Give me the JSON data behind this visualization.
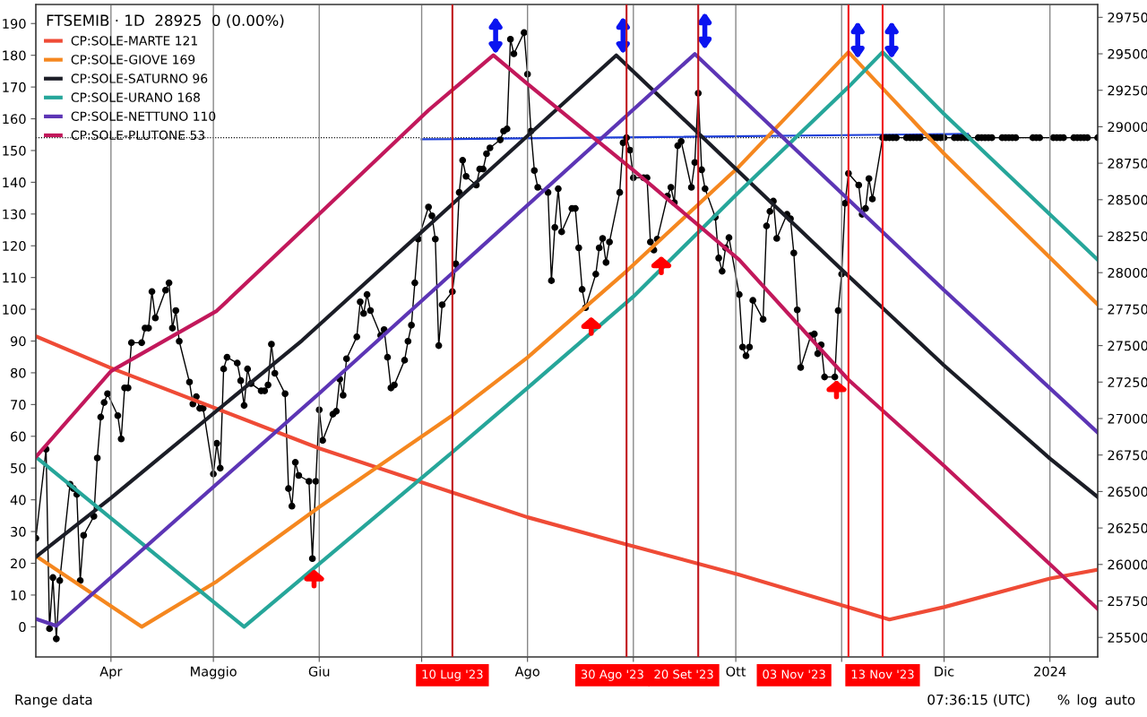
{
  "chart_data": {
    "type": "line",
    "legend_title": "FTSEMIB · 1D  28925  0 (0.00%)",
    "annotations": [
      "Range data",
      "07:36:15 (UTC)",
      "%",
      "log",
      "auto"
    ],
    "xlim": [
      "2023-03-10",
      "2024-01-15"
    ],
    "xticks": [
      {
        "value": "2023-04-01",
        "label": "Apr"
      },
      {
        "value": "2023-05-01",
        "label": "Maggio"
      },
      {
        "value": "2023-06-01",
        "label": "Giu"
      },
      {
        "value": "2023-07-01",
        "label": null
      },
      {
        "value": "2023-08-01",
        "label": "Ago"
      },
      {
        "value": "2023-09-01",
        "label": null
      },
      {
        "value": "2023-10-01",
        "label": "Ott"
      },
      {
        "value": "2023-11-01",
        "label": null
      },
      {
        "value": "2023-12-01",
        "label": "Dic"
      },
      {
        "value": "2024-01-01",
        "label": "2024"
      }
    ],
    "ylim": [
      -9.5,
      196
    ],
    "yticks": [
      0,
      10,
      20,
      30,
      40,
      50,
      60,
      70,
      80,
      90,
      100,
      110,
      120,
      130,
      140,
      150,
      160,
      170,
      180,
      190
    ],
    "y2lim": [
      25366,
      29838
    ],
    "y2ticks": [
      25500,
      25750,
      26000,
      26250,
      26500,
      26750,
      27000,
      27250,
      27500,
      27750,
      28000,
      28250,
      28500,
      28750,
      29000,
      29250,
      29500,
      29750
    ],
    "grid": "x",
    "legend": "top left",
    "ref_lines": [
      {
        "axis": "x",
        "value": "2023-07-10",
        "label": "10 Lug '23",
        "color": "#c0141b"
      },
      {
        "axis": "x",
        "value": "2023-08-30",
        "label": "30 Ago '23",
        "color": "#c0141b"
      },
      {
        "axis": "x",
        "value": "2023-09-20",
        "label": "20 Set '23",
        "color": "#c0141b"
      },
      {
        "axis": "x",
        "value": "2023-11-03",
        "label": "03 Nov '23",
        "color": "#f0141b"
      },
      {
        "axis": "x",
        "value": "2023-11-13",
        "label": "13 Nov '23",
        "color": "#f0141b"
      },
      {
        "axis": "y2",
        "value": 28925,
        "label": null,
        "color": "#000000",
        "line_style": "dotted"
      }
    ],
    "series": [
      {
        "name": "CP:SOLE-MARTE 121",
        "color": "#ef4b36",
        "marker": "none",
        "x": [
          "2023-03-10",
          "2023-04-01",
          "2023-06-01",
          "2023-07-10",
          "2023-08-01",
          "2023-08-30",
          "2023-10-02",
          "2023-11-03",
          "2023-11-15",
          "2023-12-01",
          "2024-01-01",
          "2024-01-15"
        ],
        "values": [
          91.5,
          81.5,
          56.2,
          42.3,
          34.5,
          25.9,
          16.4,
          6.2,
          2.3,
          6.2,
          15.2,
          18
        ]
      },
      {
        "name": "CP:SOLE-GIOVE 169",
        "color": "#f5871f",
        "marker": "none",
        "x": [
          "2023-03-10",
          "2023-04-10",
          "2023-05-02",
          "2023-06-01",
          "2023-07-10",
          "2023-08-01",
          "2023-08-30",
          "2023-10-02",
          "2023-11-03",
          "2023-12-01",
          "2024-01-15"
        ],
        "values": [
          22.3,
          0,
          14.3,
          37.7,
          66.6,
          84.8,
          112,
          145,
          181,
          149,
          101.5
        ]
      },
      {
        "name": "CP:SOLE-SATURNO 96",
        "color": "#1b1d26",
        "marker": "none",
        "x": [
          "2023-03-10",
          "2023-04-01",
          "2023-05-27",
          "2023-08-27",
          "2023-11-03",
          "2023-12-01",
          "2024-01-01",
          "2024-01-15"
        ],
        "values": [
          22,
          40.6,
          90.2,
          180,
          110.5,
          82.3,
          53,
          40.9
        ]
      },
      {
        "name": "CP:SOLE-URANO 168",
        "color": "#26a69a",
        "marker": "none",
        "x": [
          "2023-03-10",
          "2023-05-10",
          "2023-07-10",
          "2023-08-01",
          "2023-09-01",
          "2023-10-02",
          "2023-11-03",
          "2023-11-13",
          "2023-12-01",
          "2024-01-15"
        ],
        "values": [
          53.5,
          0,
          55,
          75.2,
          104,
          137,
          170,
          181,
          161.5,
          115.6
        ]
      },
      {
        "name": "CP:SOLE-NETTUNO 110",
        "color": "#5c35b5",
        "marker": "none",
        "x": [
          "2023-03-10",
          "2023-03-16",
          "2023-06-01",
          "2023-09-19",
          "2023-12-01",
          "2024-01-15"
        ],
        "values": [
          2.5,
          0.3,
          73.5,
          180.4,
          106,
          61.2
        ]
      },
      {
        "name": "CP:SOLE-PLUTONE 53",
        "color": "#c2185b",
        "marker": "none",
        "x": [
          "2023-03-10",
          "2023-04-01",
          "2023-05-02",
          "2023-06-01",
          "2023-07-03",
          "2023-07-22",
          "2023-08-01",
          "2023-09-01",
          "2023-10-02",
          "2023-11-03",
          "2023-12-01",
          "2024-01-01",
          "2024-01-15"
        ],
        "values": [
          53.5,
          80.5,
          99.5,
          130,
          162.7,
          180,
          171,
          143.8,
          115.6,
          77.8,
          50.7,
          19.7,
          5.6
        ]
      },
      {
        "color": "#1e3fd8",
        "marker": "none",
        "axis": "y2",
        "x": [
          "2023-07-01",
          "2023-12-08"
        ],
        "values": [
          28914,
          28951
        ]
      },
      {
        "color": "#000000",
        "marker": "circle",
        "axis": "y2",
        "x": [
          "2023-03-10",
          "2023-03-13",
          "2023-03-14",
          "2023-03-15",
          "2023-03-16",
          "2023-03-17",
          "2023-03-20",
          "2023-03-21",
          "2023-03-22",
          "2023-03-23",
          "2023-03-24",
          "2023-03-27",
          "2023-03-28",
          "2023-03-29",
          "2023-03-30",
          "2023-03-31",
          "2023-04-03",
          "2023-04-04",
          "2023-04-05",
          "2023-04-06",
          "2023-04-07",
          "2023-04-10",
          "2023-04-11",
          "2023-04-12",
          "2023-04-13",
          "2023-04-14",
          "2023-04-17",
          "2023-04-18",
          "2023-04-19",
          "2023-04-20",
          "2023-04-21",
          "2023-04-24",
          "2023-04-25",
          "2023-04-26",
          "2023-04-27",
          "2023-04-28",
          "2023-05-01",
          "2023-05-02",
          "2023-05-03",
          "2023-05-04",
          "2023-05-05",
          "2023-05-08",
          "2023-05-09",
          "2023-05-10",
          "2023-05-11",
          "2023-05-12",
          "2023-05-15",
          "2023-05-16",
          "2023-05-17",
          "2023-05-18",
          "2023-05-19",
          "2023-05-22",
          "2023-05-23",
          "2023-05-24",
          "2023-05-25",
          "2023-05-26",
          "2023-05-29",
          "2023-05-30",
          "2023-05-31",
          "2023-06-01",
          "2023-06-02",
          "2023-06-05",
          "2023-06-06",
          "2023-06-07",
          "2023-06-08",
          "2023-06-09",
          "2023-06-12",
          "2023-06-13",
          "2023-06-14",
          "2023-06-15",
          "2023-06-16",
          "2023-06-19",
          "2023-06-20",
          "2023-06-21",
          "2023-06-22",
          "2023-06-23",
          "2023-06-26",
          "2023-06-27",
          "2023-06-28",
          "2023-06-29",
          "2023-06-30",
          "2023-07-03",
          "2023-07-04",
          "2023-07-05",
          "2023-07-06",
          "2023-07-07",
          "2023-07-10",
          "2023-07-11",
          "2023-07-12",
          "2023-07-13",
          "2023-07-14",
          "2023-07-17",
          "2023-07-18",
          "2023-07-19",
          "2023-07-20",
          "2023-07-21",
          "2023-07-24",
          "2023-07-25",
          "2023-07-26",
          "2023-07-27",
          "2023-07-28",
          "2023-07-31",
          "2023-08-01",
          "2023-08-02",
          "2023-08-03",
          "2023-08-04",
          "2023-08-07",
          "2023-08-08",
          "2023-08-09",
          "2023-08-10",
          "2023-08-11",
          "2023-08-14",
          "2023-08-15",
          "2023-08-16",
          "2023-08-17",
          "2023-08-18",
          "2023-08-21",
          "2023-08-22",
          "2023-08-23",
          "2023-08-24",
          "2023-08-25",
          "2023-08-28",
          "2023-08-29",
          "2023-08-30",
          "2023-08-31",
          "2023-09-01",
          "2023-09-04",
          "2023-09-05",
          "2023-09-06",
          "2023-09-07",
          "2023-09-08",
          "2023-09-11",
          "2023-09-12",
          "2023-09-13",
          "2023-09-14",
          "2023-09-15",
          "2023-09-18",
          "2023-09-19",
          "2023-09-20",
          "2023-09-21",
          "2023-09-22",
          "2023-09-25",
          "2023-09-26",
          "2023-09-27",
          "2023-09-28",
          "2023-09-29",
          "2023-10-02",
          "2023-10-03",
          "2023-10-04",
          "2023-10-05",
          "2023-10-06",
          "2023-10-09",
          "2023-10-10",
          "2023-10-11",
          "2023-10-12",
          "2023-10-13",
          "2023-10-16",
          "2023-10-17",
          "2023-10-18",
          "2023-10-19",
          "2023-10-20",
          "2023-10-23",
          "2023-10-24",
          "2023-10-25",
          "2023-10-26",
          "2023-10-27",
          "2023-10-30",
          "2023-10-31",
          "2023-11-01",
          "2023-11-02",
          "2023-11-03",
          "2023-11-06",
          "2023-11-07",
          "2023-11-08",
          "2023-11-09",
          "2023-11-10",
          "2023-11-13",
          "2023-11-14",
          "2023-11-15",
          "2023-11-16",
          "2023-11-17",
          "2023-11-20",
          "2023-11-21",
          "2023-11-22",
          "2023-11-23",
          "2023-11-24",
          "2023-11-27",
          "2023-11-28",
          "2023-11-29",
          "2023-11-30",
          "2023-12-01",
          "2023-12-04",
          "2023-12-05",
          "2023-12-06",
          "2023-12-07",
          "2023-12-08",
          "2023-12-11",
          "2023-12-12",
          "2023-12-13",
          "2023-12-14",
          "2023-12-15",
          "2023-12-18",
          "2023-12-19",
          "2023-12-20",
          "2023-12-21",
          "2023-12-22",
          "2023-12-27",
          "2023-12-28",
          "2023-12-29",
          "2024-01-02",
          "2024-01-03",
          "2024-01-04",
          "2024-01-05",
          "2024-01-08",
          "2024-01-09",
          "2024-01-10",
          "2024-01-11",
          "2024-01-12",
          "2024-01-15"
        ],
        "values": [
          26180,
          26790,
          25560,
          25910,
          25490,
          25890,
          26550,
          26520,
          26480,
          25890,
          26200,
          26330,
          26730,
          27010,
          27110,
          27170,
          27020,
          26860,
          27210,
          27210,
          27520,
          27520,
          27620,
          27620,
          27870,
          27690,
          27880,
          27930,
          27620,
          27740,
          27530,
          27250,
          27100,
          27150,
          27070,
          27070,
          26620,
          26830,
          26660,
          27340,
          27420,
          27380,
          27260,
          27090,
          27340,
          27240,
          27190,
          27190,
          27230,
          27510,
          27310,
          27170,
          26520,
          26400,
          26700,
          26610,
          26570,
          26040,
          26570,
          27060,
          26850,
          27030,
          27050,
          27270,
          27160,
          27410,
          27560,
          27800,
          27720,
          27850,
          27740,
          27570,
          27610,
          27420,
          27210,
          27230,
          27400,
          27530,
          27640,
          27930,
          28230,
          28450,
          28390,
          28230,
          27500,
          27780,
          27870,
          28060,
          28550,
          28770,
          28660,
          28600,
          28710,
          28710,
          28815,
          28855,
          28910,
          28970,
          28985,
          29600,
          29500,
          29645,
          29360,
          28970,
          28700,
          28585,
          28550,
          27945,
          28310,
          28575,
          28280,
          28440,
          28440,
          28170,
          27885,
          27760,
          27990,
          28170,
          28235,
          28070,
          28210,
          28550,
          28890,
          28925,
          28840,
          28650,
          28650,
          28650,
          28210,
          28155,
          28230,
          28525,
          28585,
          28480,
          28870,
          28900,
          28585,
          28755,
          29230,
          28705,
          28575,
          28380,
          28100,
          28010,
          28170,
          28240,
          27850,
          27490,
          27430,
          27490,
          27810,
          27680,
          28320,
          28420,
          28490,
          28235,
          28400,
          28370,
          28135,
          27745,
          27350,
          27570,
          27580,
          27445,
          27505,
          27285,
          27285,
          27740,
          27990,
          28475,
          28680,
          28600,
          28400,
          28440,
          28645,
          28505,
          28925,
          28925,
          28925,
          28925,
          28925,
          28925,
          28925,
          28925,
          28925,
          28925,
          28925,
          28925,
          28925,
          28925,
          28925,
          28925,
          28925,
          28925,
          28925,
          28925,
          28925,
          28925,
          28925,
          28925,
          28925,
          28925,
          28925,
          28925,
          28925,
          28925,
          28925,
          28925,
          28925,
          28925,
          28925,
          28925,
          28925,
          28925,
          28925,
          28925,
          28925,
          28925,
          28925
        ]
      }
    ]
  }
}
